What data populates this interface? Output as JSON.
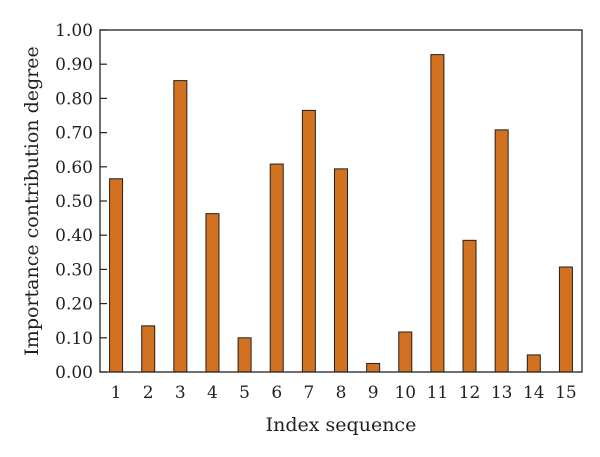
{
  "chart_data": {
    "type": "bar",
    "title": "",
    "xlabel": "Index sequence",
    "ylabel": "Importance contribution degree",
    "categories": [
      "1",
      "2",
      "3",
      "4",
      "5",
      "6",
      "7",
      "8",
      "9",
      "10",
      "11",
      "12",
      "13",
      "14",
      "15"
    ],
    "values": [
      0.565,
      0.135,
      0.852,
      0.463,
      0.1,
      0.608,
      0.765,
      0.594,
      0.025,
      0.117,
      0.928,
      0.385,
      0.708,
      0.05,
      0.307
    ],
    "ylim": [
      0,
      1.0
    ],
    "yticks": [
      "0.00",
      "0.10",
      "0.20",
      "0.30",
      "0.40",
      "0.50",
      "0.60",
      "0.70",
      "0.80",
      "0.90",
      "1.00"
    ],
    "grid": false,
    "legend": "none",
    "bar_color": "#d2711f",
    "bar_stroke": "#231f20"
  }
}
